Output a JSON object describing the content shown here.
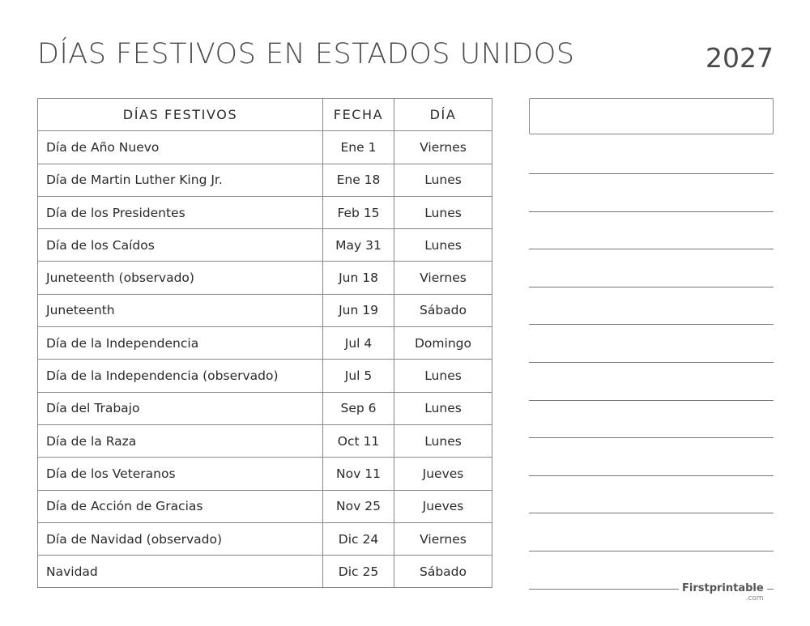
{
  "header": {
    "title": "DÍAS FESTIVOS EN ESTADOS UNIDOS",
    "year": "2027"
  },
  "table": {
    "columns": [
      "DÍAS FESTIVOS",
      "FECHA",
      "DÍA"
    ],
    "rows": [
      [
        "Día de Año Nuevo",
        "Ene 1",
        "Viernes"
      ],
      [
        "Día de Martin Luther King Jr.",
        "Ene 18",
        "Lunes"
      ],
      [
        "Día de los Presidentes",
        "Feb 15",
        "Lunes"
      ],
      [
        "Día de los Caídos",
        "May 31",
        "Lunes"
      ],
      [
        "Juneteenth (observado)",
        "Jun 18",
        "Viernes"
      ],
      [
        "Juneteenth",
        "Jun 19",
        "Sábado"
      ],
      [
        "Día de la Independencia",
        "Jul 4",
        "Domingo"
      ],
      [
        "Día de la Independencia (observado)",
        "Jul 5",
        "Lunes"
      ],
      [
        "Día del Trabajo",
        "Sep 6",
        "Lunes"
      ],
      [
        "Día de la Raza",
        "Oct 11",
        "Lunes"
      ],
      [
        "Día de los Veteranos",
        "Nov 11",
        "Jueves"
      ],
      [
        "Día de Acción de Gracias",
        "Nov 25",
        "Jueves"
      ],
      [
        "Día de Navidad (observado)",
        "Dic 24",
        "Viernes"
      ],
      [
        "Navidad",
        "Dic 25",
        "Sábado"
      ]
    ]
  },
  "logo": {
    "name": "Firstprintable",
    "suffix": ".com"
  }
}
